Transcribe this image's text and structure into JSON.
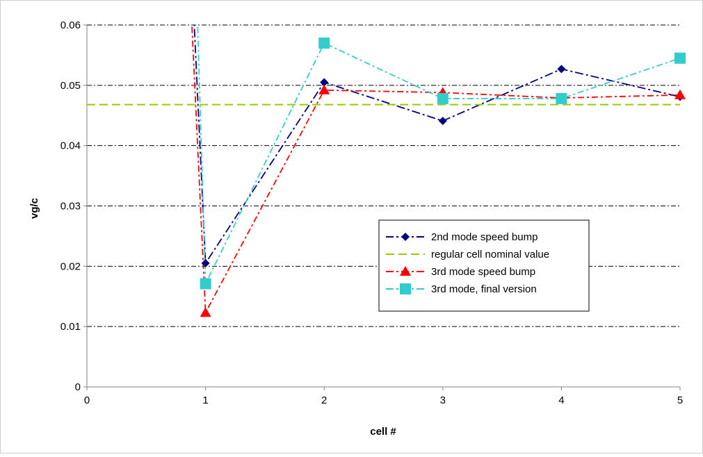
{
  "chart_data": {
    "type": "line",
    "title": "",
    "xlabel": "cell #",
    "ylabel": "vg/c",
    "xlim": [
      0,
      5
    ],
    "ylim": [
      0,
      0.06
    ],
    "x_ticks": [
      "0",
      "1",
      "2",
      "3",
      "4",
      "5"
    ],
    "y_ticks": [
      "0",
      "0.01",
      "0.02",
      "0.03",
      "0.04",
      "0.05",
      "0.06"
    ],
    "grid": "horizontal, dash-dot",
    "legend_position": "center-right",
    "series": [
      {
        "name": "2nd mode speed bump",
        "color": "#000080",
        "marker": "diamond",
        "dash": "long-dash-dot",
        "x": [
          0.9,
          1,
          2,
          3,
          4,
          5
        ],
        "y": [
          0.062,
          0.0205,
          0.0505,
          0.0441,
          0.0527,
          0.0481
        ],
        "marker_from_index": 1
      },
      {
        "name": "regular cell nominal value",
        "color": "#99CC00",
        "marker": "none",
        "dash": "dashed",
        "x": [
          0,
          5
        ],
        "y": [
          0.0468,
          0.0468
        ],
        "marker_from_index": 99
      },
      {
        "name": "3rd mode speed bump",
        "color": "#FF0000",
        "marker": "triangle",
        "dash": "dash-dot",
        "x": [
          0.88,
          1,
          2,
          3,
          4,
          5
        ],
        "y": [
          0.062,
          0.0123,
          0.0492,
          0.0488,
          0.0479,
          0.0484
        ],
        "marker_from_index": 1
      },
      {
        "name": "3rd mode, final version",
        "color": "#33CCCC",
        "marker": "square",
        "dash": "dash-dot",
        "x": [
          0.93,
          1,
          2,
          3,
          4,
          5
        ],
        "y": [
          0.062,
          0.0171,
          0.057,
          0.0478,
          0.0478,
          0.0545
        ],
        "marker_from_index": 1
      }
    ]
  }
}
